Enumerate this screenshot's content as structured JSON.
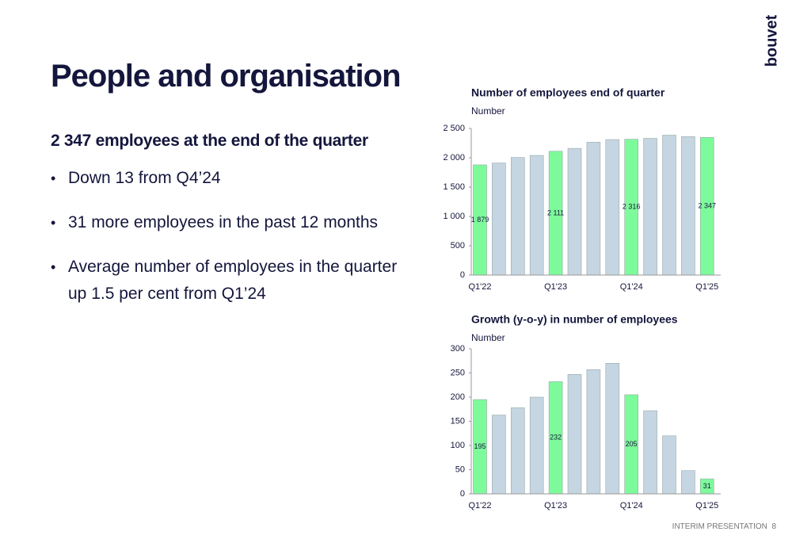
{
  "logo": "bouvet",
  "title": "People and organisation",
  "heading": "2 347 employees at the end of the quarter",
  "bullets": [
    "Down 13 from Q4’24",
    "31 more employees in the past 12 months",
    "Average number of employees in the quarter up 1.5 per cent from Q1’24"
  ],
  "footer": {
    "label": "INTERIM PRESENTATION",
    "page": "8"
  },
  "chart_data": [
    {
      "type": "bar",
      "title": "Number of employees end of quarter",
      "y_label": "Number",
      "categories": [
        "Q1'22",
        null,
        null,
        null,
        "Q1'23",
        null,
        null,
        null,
        "Q1'24",
        null,
        null,
        null,
        "Q1'25"
      ],
      "values": [
        1879,
        1910,
        2005,
        2040,
        2111,
        2160,
        2265,
        2310,
        2316,
        2330,
        2385,
        2360,
        2347
      ],
      "value_labels": [
        "1 879",
        null,
        null,
        null,
        "2 111",
        null,
        null,
        null,
        "2 316",
        null,
        null,
        null,
        "2 347"
      ],
      "colors": [
        "#7dfa9a",
        "#c5d5e1",
        "#c5d5e1",
        "#c5d5e1",
        "#7dfa9a",
        "#c5d5e1",
        "#c5d5e1",
        "#c5d5e1",
        "#7dfa9a",
        "#c5d5e1",
        "#c5d5e1",
        "#c5d5e1",
        "#7dfa9a"
      ],
      "ylim": [
        0,
        2500
      ],
      "yticks": [
        0,
        500,
        {
          "value": 1000,
          "label": "1 000"
        },
        {
          "value": 1500,
          "label": "1 500"
        },
        {
          "value": 2000,
          "label": "2 000"
        },
        {
          "value": 2500,
          "label": "2 500"
        }
      ]
    },
    {
      "type": "bar",
      "title": "Growth (y-o-y) in number of employees",
      "y_label": "Number",
      "categories": [
        "Q1'22",
        null,
        null,
        null,
        "Q1'23",
        null,
        null,
        null,
        "Q1'24",
        null,
        null,
        null,
        "Q1'25"
      ],
      "values": [
        195,
        163,
        178,
        200,
        232,
        247,
        257,
        270,
        205,
        172,
        120,
        48,
        31
      ],
      "value_labels": [
        "195",
        null,
        null,
        null,
        "232",
        null,
        null,
        null,
        "205",
        null,
        null,
        null,
        "31"
      ],
      "colors": [
        "#7dfa9a",
        "#c5d5e1",
        "#c5d5e1",
        "#c5d5e1",
        "#7dfa9a",
        "#c5d5e1",
        "#c5d5e1",
        "#c5d5e1",
        "#7dfa9a",
        "#c5d5e1",
        "#c5d5e1",
        "#c5d5e1",
        "#7dfa9a"
      ],
      "ylim": [
        0,
        300
      ],
      "yticks": [
        0,
        50,
        100,
        150,
        200,
        250,
        300
      ]
    }
  ]
}
